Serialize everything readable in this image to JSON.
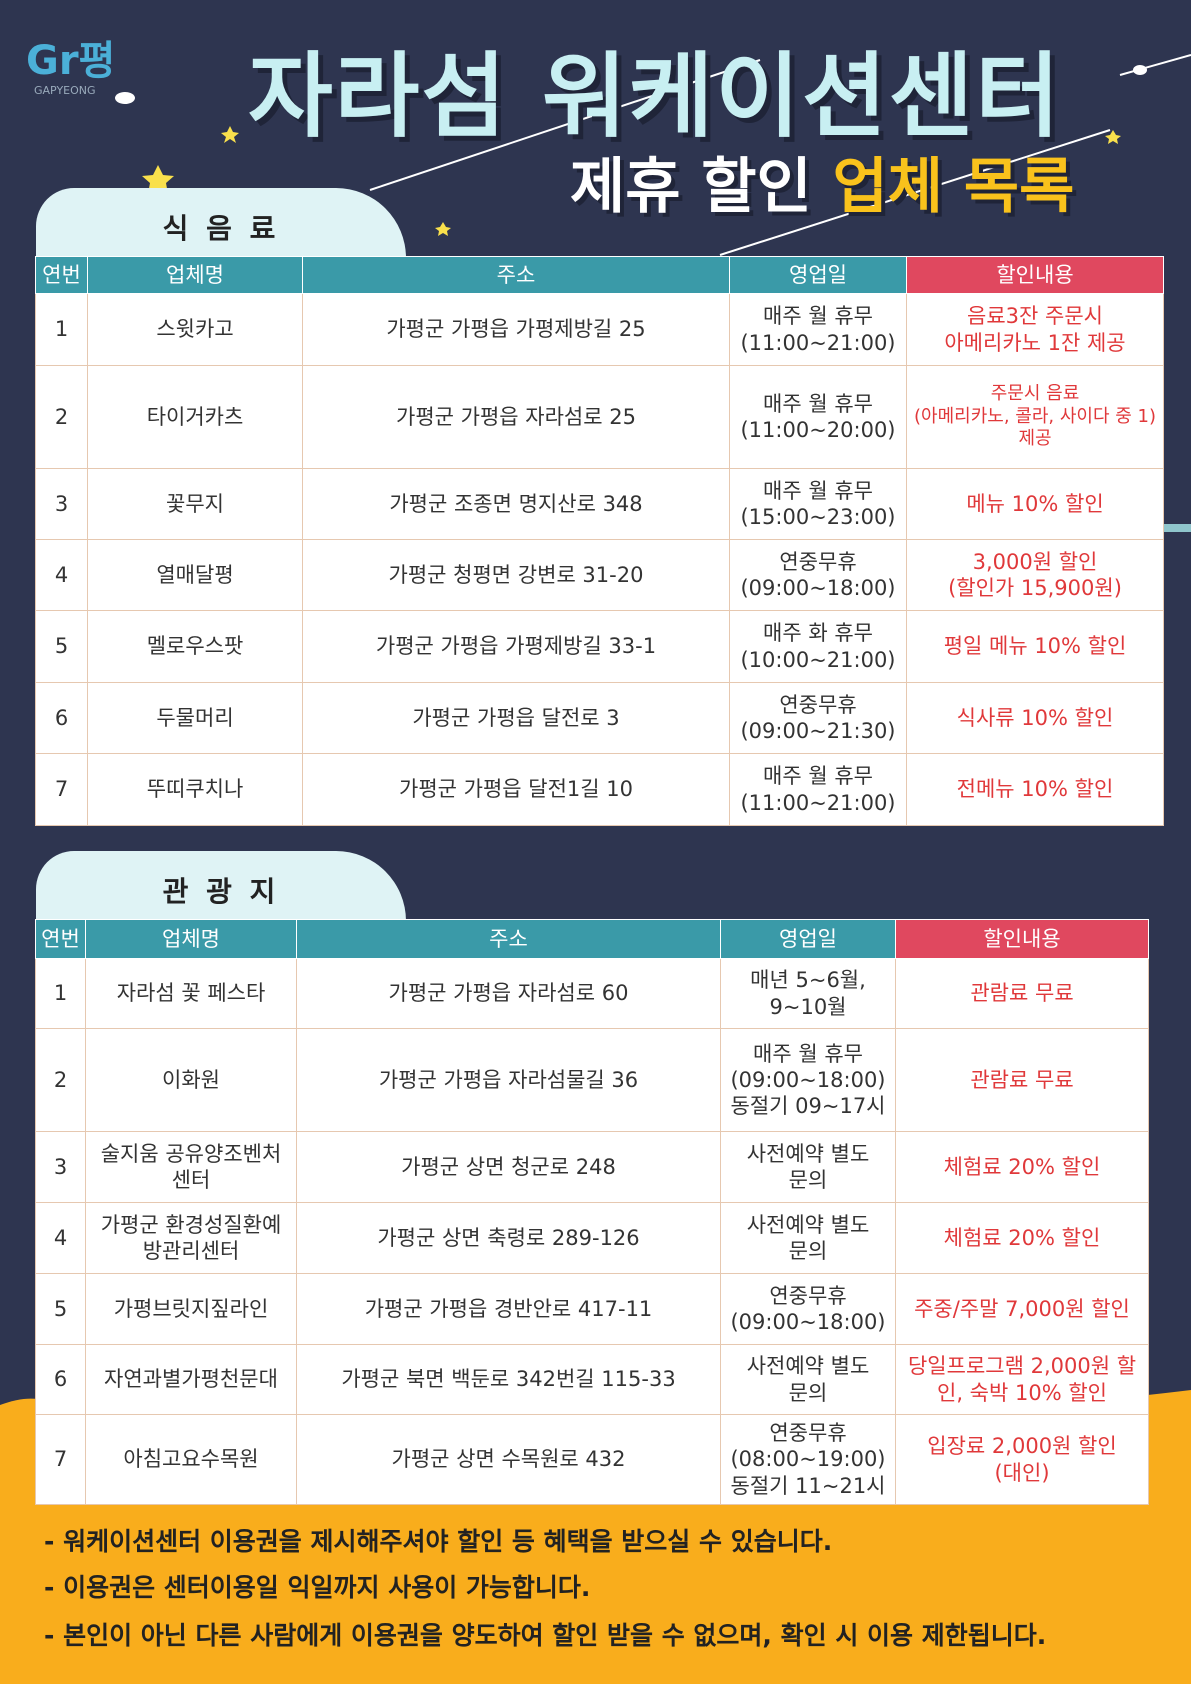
{
  "logo": {
    "mark": "Gr평",
    "text": "GAPYEONG"
  },
  "header": {
    "title": "자라섬 워케이션센터",
    "subtitle_white": "제휴 할인",
    "subtitle_yellow": "업체 목록"
  },
  "sections": [
    {
      "label": "식 음 료",
      "columns": [
        "연번",
        "업체명",
        "주소",
        "영업일",
        "할인내용"
      ],
      "rows": [
        [
          "1",
          "스윗카고",
          "가평군 가평읍 가평제방길 25",
          "매주 월 휴무\n(11:00~21:00)",
          "음료3잔 주문시\n아메리카노 1잔 제공"
        ],
        [
          "2",
          "타이거카츠",
          "가평군 가평읍 자라섬로 25",
          "매주 월 휴무\n(11:00~20:00)",
          "주문시 음료\n(아메리카노, 콜라, 사이다 중 1)\n제공"
        ],
        [
          "3",
          "꽃무지",
          "가평군 조종면 명지산로 348",
          "매주 월 휴무\n(15:00~23:00)",
          "메뉴 10% 할인"
        ],
        [
          "4",
          "열매달평",
          "가평군 청평면 강변로 31-20",
          "연중무휴\n(09:00~18:00)",
          "3,000원 할인\n(할인가 15,900원)"
        ],
        [
          "5",
          "멜로우스팟",
          "가평군 가평읍 가평제방길 33-1",
          "매주 화 휴무\n(10:00~21:00)",
          "평일 메뉴 10% 할인"
        ],
        [
          "6",
          "두물머리",
          "가평군 가평읍 달전로 3",
          "연중무휴\n(09:00~21:30)",
          "식사류 10% 할인"
        ],
        [
          "7",
          "뚜띠쿠치나",
          "가평군 가평읍 달전1길 10",
          "매주 월 휴무\n(11:00~21:00)",
          "전메뉴 10% 할인"
        ]
      ]
    },
    {
      "label": "관 광 지",
      "columns": [
        "연번",
        "업체명",
        "주소",
        "영업일",
        "할인내용"
      ],
      "rows": [
        [
          "1",
          "자라섬 꽃 페스타",
          "가평군 가평읍 자라섬로 60",
          "매년 5~6월,\n9~10월",
          "관람료 무료"
        ],
        [
          "2",
          "이화원",
          "가평군 가평읍 자라섬물길 36",
          "매주 월 휴무\n(09:00~18:00)\n동절기 09~17시",
          "관람료 무료"
        ],
        [
          "3",
          "술지움 공유양조벤처\n센터",
          "가평군 상면 청군로 248",
          "사전예약 별도\n문의",
          "체험료 20% 할인"
        ],
        [
          "4",
          "가평군 환경성질환예\n방관리센터",
          "가평군 상면 축령로 289-126",
          "사전예약 별도\n문의",
          "체험료 20% 할인"
        ],
        [
          "5",
          "가평브릿지짚라인",
          "가평군 가평읍 경반안로 417-11",
          "연중무휴\n(09:00~18:00)",
          "주중/주말 7,000원 할인"
        ],
        [
          "6",
          "자연과별가평천문대",
          "가평군 북면 백둔로 342번길 115-33",
          "사전예약 별도\n문의",
          "당일프로그램 2,000원 할\n인, 숙박 10% 할인"
        ],
        [
          "7",
          "아침고요수목원",
          "가평군 상면 수목원로 432",
          "연중무휴\n(08:00~19:00)\n동절기 11~21시",
          "입장료 2,000원 할인\n(대인)"
        ]
      ]
    }
  ],
  "notes": [
    "- 워케이션센터 이용권을 제시해주셔야 할인 등 혜택을 받으실 수 있습니다.",
    "- 이용권은 센터이용일 익일까지 사용이 가능합니다.",
    "- 본인이 아닌 다른 사람에게 이용권을 양도하여 할인 받을 수 없으며, 확인 시 이용 제한됩니다."
  ]
}
